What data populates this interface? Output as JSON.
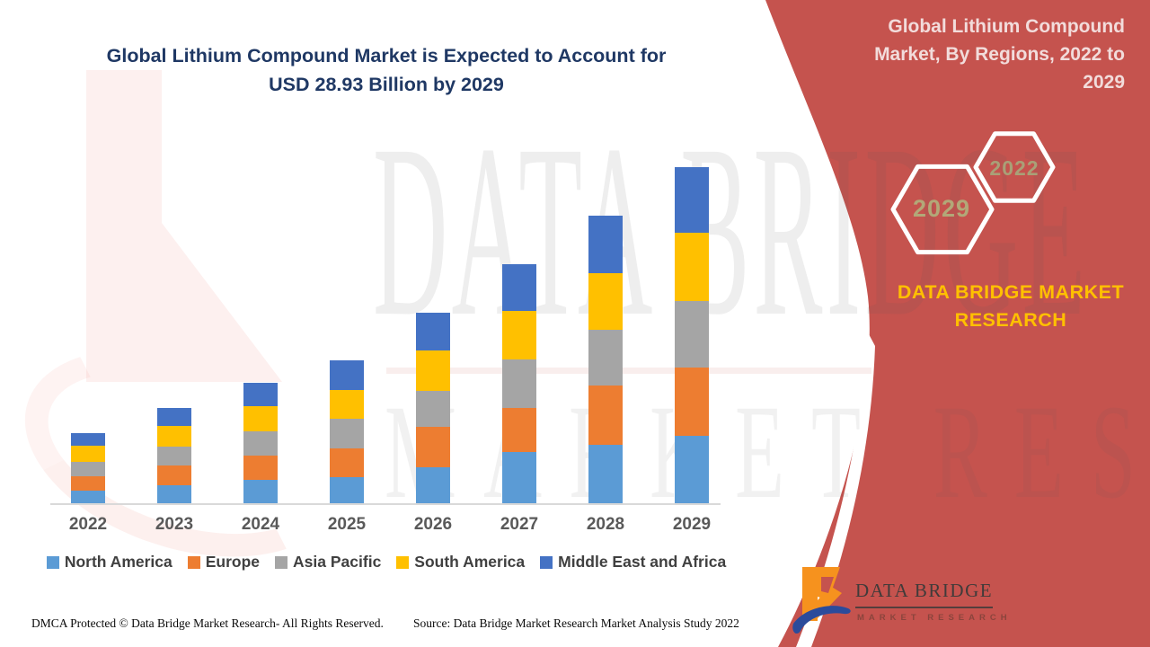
{
  "page": {
    "title_lines": [
      "Global Lithium Compound Market is Expected to Account for",
      "USD 28.93 Billion by 2029"
    ],
    "footer": {
      "left": "DMCA Protected © Data Bridge Market Research- All Rights Reserved.",
      "right": "Source: Data Bridge Market Research Market Analysis Study 2022"
    }
  },
  "right_panel": {
    "title_lines": [
      "Global Lithium Compound",
      "Market, By Regions, 2022 to",
      "2029"
    ],
    "hexagons": [
      {
        "label": "2029"
      },
      {
        "label": "2022"
      }
    ],
    "brand_text": "DATA BRIDGE MARKET RESEARCH",
    "logo": {
      "name": "DATA BRIDGE",
      "subtitle": "MARKET RESEARCH"
    },
    "background_color": "#C5534E",
    "brand_color": "#FFC000"
  },
  "watermark": {
    "line1": "DATA BRIDGE",
    "line2": "MARKET RESEARCH"
  },
  "colors": {
    "title_navy": "#1F3864",
    "axis_gray": "#D9D9D9",
    "label_gray": "#595959",
    "legend_text": "#404040"
  },
  "chart_data": {
    "type": "bar",
    "stacked": true,
    "title": "Global Lithium Compound Market is Expected to Account for USD 28.93 Billion by 2029",
    "unit": "USD Billion",
    "categories": [
      "2022",
      "2023",
      "2024",
      "2025",
      "2026",
      "2027",
      "2028",
      "2029"
    ],
    "series": [
      {
        "name": "North America",
        "color": "#5B9BD5",
        "values": [
          1.16,
          1.62,
          2.06,
          2.32,
          3.16,
          4.48,
          5.09,
          5.87
        ]
      },
      {
        "name": "Europe",
        "color": "#ED7D31",
        "values": [
          1.23,
          1.7,
          2.11,
          2.47,
          3.47,
          3.78,
          5.09,
          5.86
        ]
      },
      {
        "name": "Asia Pacific",
        "color": "#A5A5A5",
        "values": [
          1.23,
          1.62,
          2.06,
          2.55,
          3.09,
          4.17,
          4.79,
          5.71
        ]
      },
      {
        "name": "South America",
        "color": "#FFC000",
        "values": [
          1.39,
          1.77,
          2.14,
          2.47,
          3.47,
          4.17,
          4.86,
          5.86
        ]
      },
      {
        "name": "Middle East and Africa",
        "color": "#4472C4",
        "values": [
          1.08,
          1.54,
          2.01,
          2.55,
          3.24,
          4.01,
          4.94,
          5.63
        ]
      }
    ],
    "totals": [
      6.09,
      8.25,
      10.38,
      12.36,
      16.43,
      20.61,
      24.77,
      28.93
    ],
    "ylim": [
      0,
      30
    ],
    "xlabel": "",
    "ylabel": "",
    "y_axis_hidden": true,
    "gridlines": false,
    "legend_position": "bottom"
  }
}
